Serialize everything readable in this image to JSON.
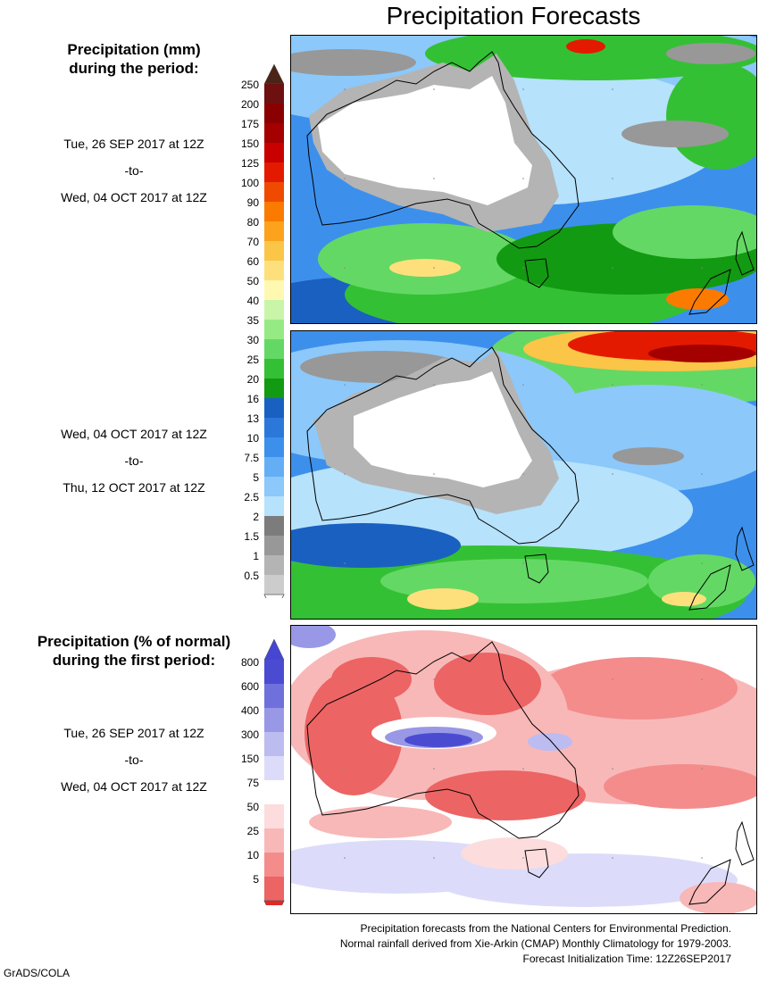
{
  "title": "Precipitation Forecasts",
  "legend_mm": {
    "heading_line1": "Precipitation (mm)",
    "heading_line2": "during the period:",
    "labels": [
      "250",
      "200",
      "175",
      "150",
      "125",
      "100",
      "90",
      "80",
      "70",
      "60",
      "50",
      "40",
      "35",
      "30",
      "25",
      "20",
      "16",
      "13",
      "10",
      "7.5",
      "5",
      "2.5",
      "2",
      "1.5",
      "1",
      "0.5"
    ],
    "colors": {
      "arrow_top": "#4a2417",
      "arrow_bottom": "#ffffff",
      "bands": [
        "#6e1010",
        "#8a0000",
        "#a40000",
        "#c80000",
        "#e31a00",
        "#f04a00",
        "#fb7a00",
        "#fca21c",
        "#fbc548",
        "#fde07c",
        "#fff8b0",
        "#c8f5a8",
        "#96ea84",
        "#64d864",
        "#34c034",
        "#129a12",
        "#1a60c0",
        "#2c78da",
        "#3c90ec",
        "#64aef6",
        "#8cc8fa",
        "#b6e2fc",
        "#7c7c7c",
        "#989898",
        "#b4b4b4",
        "#cccccc"
      ]
    }
  },
  "period1": {
    "start": "Tue, 26 SEP 2017 at 12Z",
    "to": "-to-",
    "end": "Wed, 04 OCT 2017 at 12Z"
  },
  "period2": {
    "start": "Wed, 04 OCT 2017 at 12Z",
    "to": "-to-",
    "end": "Thu, 12 OCT 2017 at 12Z"
  },
  "legend_pct": {
    "heading_line1": "Precipitation (% of normal)",
    "heading_line2": "during the first period:",
    "labels": [
      "800",
      "600",
      "400",
      "300",
      "150",
      "75",
      "50",
      "25",
      "10",
      "5"
    ],
    "colors": {
      "arrow_top": "#4646d2",
      "arrow_bottom": "#e12828",
      "bands": [
        "#4b4bd2",
        "#7070dc",
        "#9898e6",
        "#bcbcf0",
        "#dcdcfa",
        "#ffffff",
        "#fcdcdc",
        "#f8b8b8",
        "#f48c8c",
        "#ec6464"
      ]
    }
  },
  "period3": {
    "start": "Tue, 26 SEP 2017 at 12Z",
    "to": "-to-",
    "end": "Wed, 04 OCT 2017 at 12Z"
  },
  "footer": {
    "line1": "Precipitation forecasts from the National Centers for Environmental Prediction.",
    "line2": "Normal rainfall derived from Xie-Arkin (CMAP) Monthly Climatology for 1979-2003.",
    "line3": "Forecast Initialization Time: 12Z26SEP2017"
  },
  "credit": "GrADS/COLA"
}
